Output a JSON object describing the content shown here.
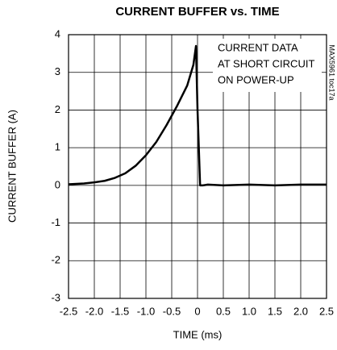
{
  "chart_data": {
    "type": "line",
    "title": "CURRENT BUFFER vs. TIME",
    "xlabel": "TIME (ms)",
    "ylabel": "CURRENT BUFFER (A)",
    "annotation": [
      "CURRENT DATA",
      "AT SHORT CIRCUIT",
      "ON POWER-UP"
    ],
    "tag": "MAX5961 toc17a",
    "x": [
      -2.5,
      -2.2,
      -2.0,
      -1.8,
      -1.6,
      -1.4,
      -1.2,
      -1.0,
      -0.8,
      -0.6,
      -0.4,
      -0.2,
      -0.08,
      -0.03,
      0.0,
      0.05,
      0.1,
      0.2,
      0.5,
      1.0,
      1.5,
      2.0,
      2.5
    ],
    "series": [
      {
        "color": "#000000",
        "values": [
          0.03,
          0.05,
          0.08,
          0.12,
          0.2,
          0.32,
          0.52,
          0.8,
          1.15,
          1.6,
          2.1,
          2.65,
          3.2,
          3.7,
          2.0,
          0.0,
          0.0,
          0.02,
          0.0,
          0.02,
          0.0,
          0.02,
          0.02
        ]
      }
    ],
    "xlim": [
      -2.5,
      2.5
    ],
    "xticks": [
      -2.5,
      {
        "value": -2,
        "label": "-2.0"
      },
      -1.5,
      {
        "value": -1,
        "label": "-1.0"
      },
      -0.5,
      0,
      0.5,
      {
        "value": 1,
        "label": "1.0"
      },
      1.5,
      {
        "value": 2,
        "label": "2.0"
      },
      2.5
    ],
    "ylim": [
      -3,
      4
    ],
    "yticks": [
      -3,
      -2,
      -1,
      0,
      1,
      2,
      3,
      4
    ],
    "grid": true
  }
}
